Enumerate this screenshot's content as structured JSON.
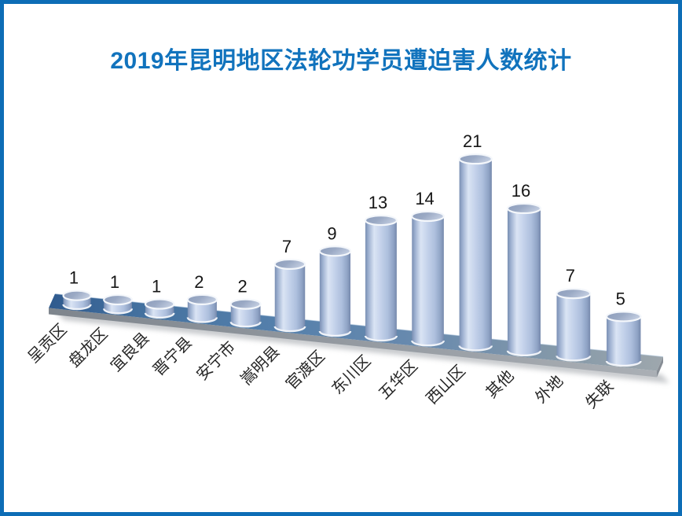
{
  "title": "2019年昆明地区法轮功学员遭迫害人数统计",
  "colors": {
    "frame_border": "#0d6db6",
    "title_text": "#1173bd",
    "value_label": "#161616",
    "category_label": "#262626",
    "cylinder_body_light": "#dae4f4",
    "cylinder_body_dark": "#7a8fb3",
    "cylinder_cap": "#9aa9c4",
    "cylinder_rim": "#f4f7fb",
    "floor_left": "#2f5a8e",
    "floor_right": "#9ea7ad",
    "floor_edge": "#9298a0"
  },
  "chart_data": {
    "type": "bar",
    "subtype": "3d-cylinder-perspective",
    "title": "2019年昆明地区法轮功学员遭迫害人数统计",
    "categories": [
      "呈贡区",
      "盘龙区",
      "宜良县",
      "晋宁县",
      "安宁市",
      "嵩明县",
      "官渡区",
      "东川区",
      "五华区",
      "西山区",
      "其他",
      "外地",
      "失联"
    ],
    "values": [
      1,
      1,
      1,
      2,
      2,
      7,
      9,
      13,
      14,
      21,
      16,
      7,
      5
    ],
    "xlabel": "",
    "ylabel": "",
    "legend": false,
    "gridlines": false,
    "data_labels": true,
    "axis_labels_rotation_deg": -45
  }
}
